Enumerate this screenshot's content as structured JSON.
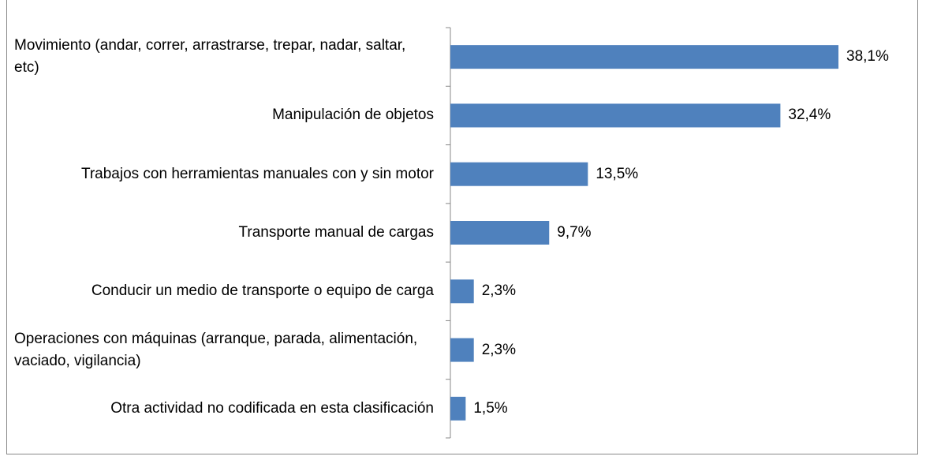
{
  "chart_data": {
    "type": "bar",
    "orientation": "horizontal",
    "categories": [
      "Movimiento (andar, correr, arrastrarse, trepar, nadar, saltar, etc)",
      "Manipulación de objetos",
      "Trabajos con herramientas manuales con y sin motor",
      "Transporte manual de cargas",
      "Conducir un medio de transporte o equipo de carga",
      "Operaciones con máquinas (arranque, parada, alimentación, vaciado, vigilancia)",
      "Otra actividad no codificada en esta clasificación"
    ],
    "values": [
      38.1,
      32.4,
      13.5,
      9.7,
      2.3,
      2.3,
      1.5
    ],
    "value_labels": [
      "38,1%",
      "32,4%",
      "13,5%",
      "9,7%",
      "2,3%",
      "2,3%",
      "1,5%"
    ],
    "color": "#4f81bd"
  }
}
